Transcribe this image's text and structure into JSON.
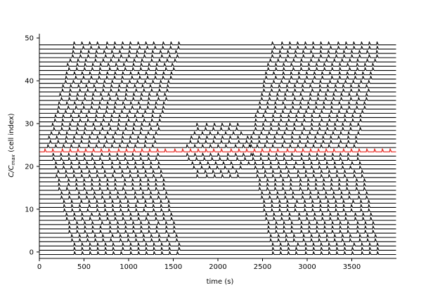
{
  "chart_data": {
    "type": "line",
    "title": "",
    "xlabel": "time (s)",
    "ylabel_main": "C/C",
    "ylabel_sub": "max",
    "ylabel_suffix": " (cell index)",
    "xlim": [
      0,
      4000
    ],
    "ylim": [
      -1.5,
      51
    ],
    "x_ticks": [
      0,
      500,
      1000,
      1500,
      2000,
      2500,
      3000,
      3500
    ],
    "y_ticks": [
      0,
      10,
      20,
      30,
      40,
      50
    ],
    "grid": false,
    "legend": "none",
    "n_cells": 50,
    "highlight_cell": 24,
    "line_color": "#000000",
    "highlight_color": "#e8312a",
    "spike_amplitude": 0.7,
    "spike_period_s": 90,
    "wave_a": {
      "description_free": true,
      "cells_0_to_24_start_s": [
        370,
        110
      ],
      "cells_25_to_49_start_s": [
        70,
        370
      ],
      "duration_s": 1230
    },
    "wave_b": {
      "cells_0_to_24_start_s": [
        2600,
        2350
      ],
      "cells_25_to_49_start_s": [
        2330,
        2600
      ],
      "duration_s": 1240
    },
    "middle_activity_cells_18_to_30": [
      1600,
      2400
    ]
  }
}
